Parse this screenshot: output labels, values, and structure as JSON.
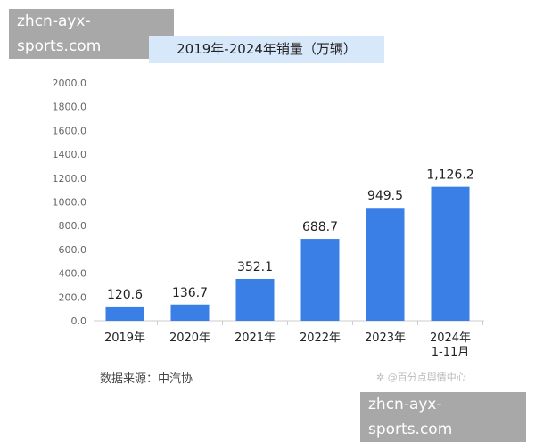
{
  "watermark": "zhcn-ayx-sports.com",
  "source_note": "数据来源：中汽协",
  "credit_logo": "@百分点舆情中心",
  "chart_data": {
    "type": "bar",
    "title": "2019年-2024年销量（万辆）",
    "categories": [
      "2019年",
      "2020年",
      "2021年",
      "2022年",
      "2023年",
      "2024年\n1-11月"
    ],
    "values": [
      120.6,
      136.7,
      352.1,
      688.7,
      949.5,
      1126.2
    ],
    "data_labels": [
      "120.6",
      "136.7",
      "352.1",
      "688.7",
      "949.5",
      "1,126.2"
    ],
    "ylim": [
      0,
      2000
    ],
    "yticks": [
      "0.0",
      "200.0",
      "400.0",
      "600.0",
      "800.0",
      "1000.0",
      "1200.0",
      "1400.0",
      "1600.0",
      "1800.0",
      "2000.0"
    ],
    "grid": false,
    "bar_color": "#3a7fe6"
  }
}
